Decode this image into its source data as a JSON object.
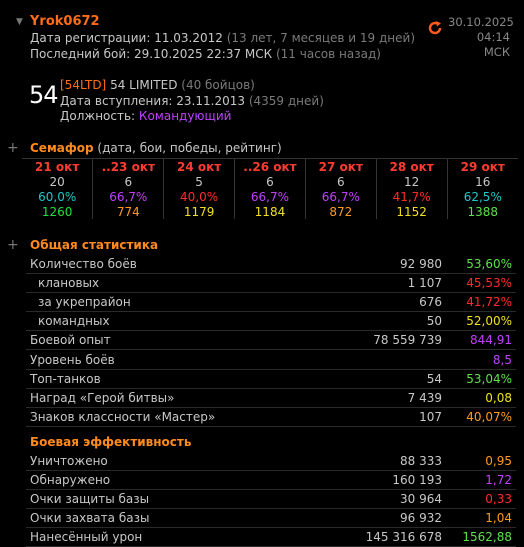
{
  "player": {
    "name": "Yrok0672",
    "reg_label": "Дата регистрации:",
    "reg_date": "11.03.2012",
    "reg_ago": "(13 лет, 7 месяцев и 19 дней)",
    "last_label": "Последний бой:",
    "last_date": "29.10.2025 22:37 МСК",
    "last_ago": "(11 часов назад)"
  },
  "updated": {
    "date": "30.10.2025",
    "time": "04:14 МСК"
  },
  "clan": {
    "emblem": "54",
    "tag": "[54LTD]",
    "name": "54 LIMITED",
    "members": "(40 бойцов)",
    "join_label": "Дата вступления:",
    "join_date": "23.11.2013",
    "join_days": "(4359 дней)",
    "role_label": "Должность:",
    "role": "Командующий"
  },
  "semafor": {
    "title": "Семафор",
    "subtitle": "(дата, бои, победы, рейтинг)",
    "days": [
      {
        "date": "21 окт",
        "battles": "20",
        "wins": "60,0%",
        "rating": "1260",
        "wins_color": "#20c8c8",
        "rating_color": "#22e035"
      },
      {
        "date": "..23 окт",
        "battles": "6",
        "wins": "66,7%",
        "rating": "774",
        "wins_color": "#c040ff",
        "rating_color": "#ff9a20"
      },
      {
        "date": "24 окт",
        "battles": "5",
        "wins": "40,0%",
        "rating": "1179",
        "wins_color": "#ff2a2a",
        "rating_color": "#f0e020"
      },
      {
        "date": "..26 окт",
        "battles": "6",
        "wins": "66,7%",
        "rating": "1184",
        "wins_color": "#c040ff",
        "rating_color": "#f0e020"
      },
      {
        "date": "27 окт",
        "battles": "6",
        "wins": "66,7%",
        "rating": "872",
        "wins_color": "#c040ff",
        "rating_color": "#ff9a20"
      },
      {
        "date": "28 окт",
        "battles": "12",
        "wins": "41,7%",
        "rating": "1152",
        "wins_color": "#ff2a2a",
        "rating_color": "#f0e020"
      },
      {
        "date": "29 окт",
        "battles": "16",
        "wins": "62,5%",
        "rating": "1388",
        "wins_color": "#20c8c8",
        "rating_color": "#5ee04a"
      }
    ]
  },
  "general": {
    "title": "Общая статистика",
    "rows": [
      {
        "label": "Количество боёв",
        "value": "92 980",
        "pct": "53,60%",
        "color": "#5ee04a",
        "indent": false
      },
      {
        "label": "клановых",
        "value": "1 107",
        "pct": "45,53%",
        "color": "#ff2a2a",
        "indent": true
      },
      {
        "label": "за укрепрайон",
        "value": "676",
        "pct": "41,72%",
        "color": "#ff2a2a",
        "indent": true
      },
      {
        "label": "командных",
        "value": "50",
        "pct": "52,00%",
        "color": "#f0e020",
        "indent": true
      },
      {
        "label": "Боевой опыт",
        "value": "78 559 739",
        "pct": "844,91",
        "color": "#c040ff",
        "indent": false
      },
      {
        "label": "Уровень боёв",
        "value": "",
        "pct": "8,5",
        "color": "#c040ff",
        "indent": false
      },
      {
        "label": "Топ-танков",
        "value": "54",
        "pct": "53,04%",
        "color": "#5ee04a",
        "indent": false
      },
      {
        "label": "Наград «Герой битвы»",
        "value": "7 439",
        "pct": "0,08",
        "color": "#f0e020",
        "indent": false
      },
      {
        "label": "Знаков классности «Мастер»",
        "value": "107",
        "pct": "40,07%",
        "color": "#ff9a20",
        "indent": false
      }
    ]
  },
  "efficiency": {
    "title": "Боевая эффективность",
    "rows": [
      {
        "label": "Уничтожено",
        "value": "88 333",
        "pct": "0,95",
        "color": "#ff9a20"
      },
      {
        "label": "Обнаружено",
        "value": "160 193",
        "pct": "1,72",
        "color": "#c040ff"
      },
      {
        "label": "Очки защиты базы",
        "value": "30 964",
        "pct": "0,33",
        "color": "#ff2a2a"
      },
      {
        "label": "Очки захвата базы",
        "value": "96 932",
        "pct": "1,04",
        "color": "#ff9a20"
      },
      {
        "label": "Нанесённый урон",
        "value": "145 316 678",
        "pct": "1562,88",
        "color": "#5ee04a"
      }
    ]
  }
}
